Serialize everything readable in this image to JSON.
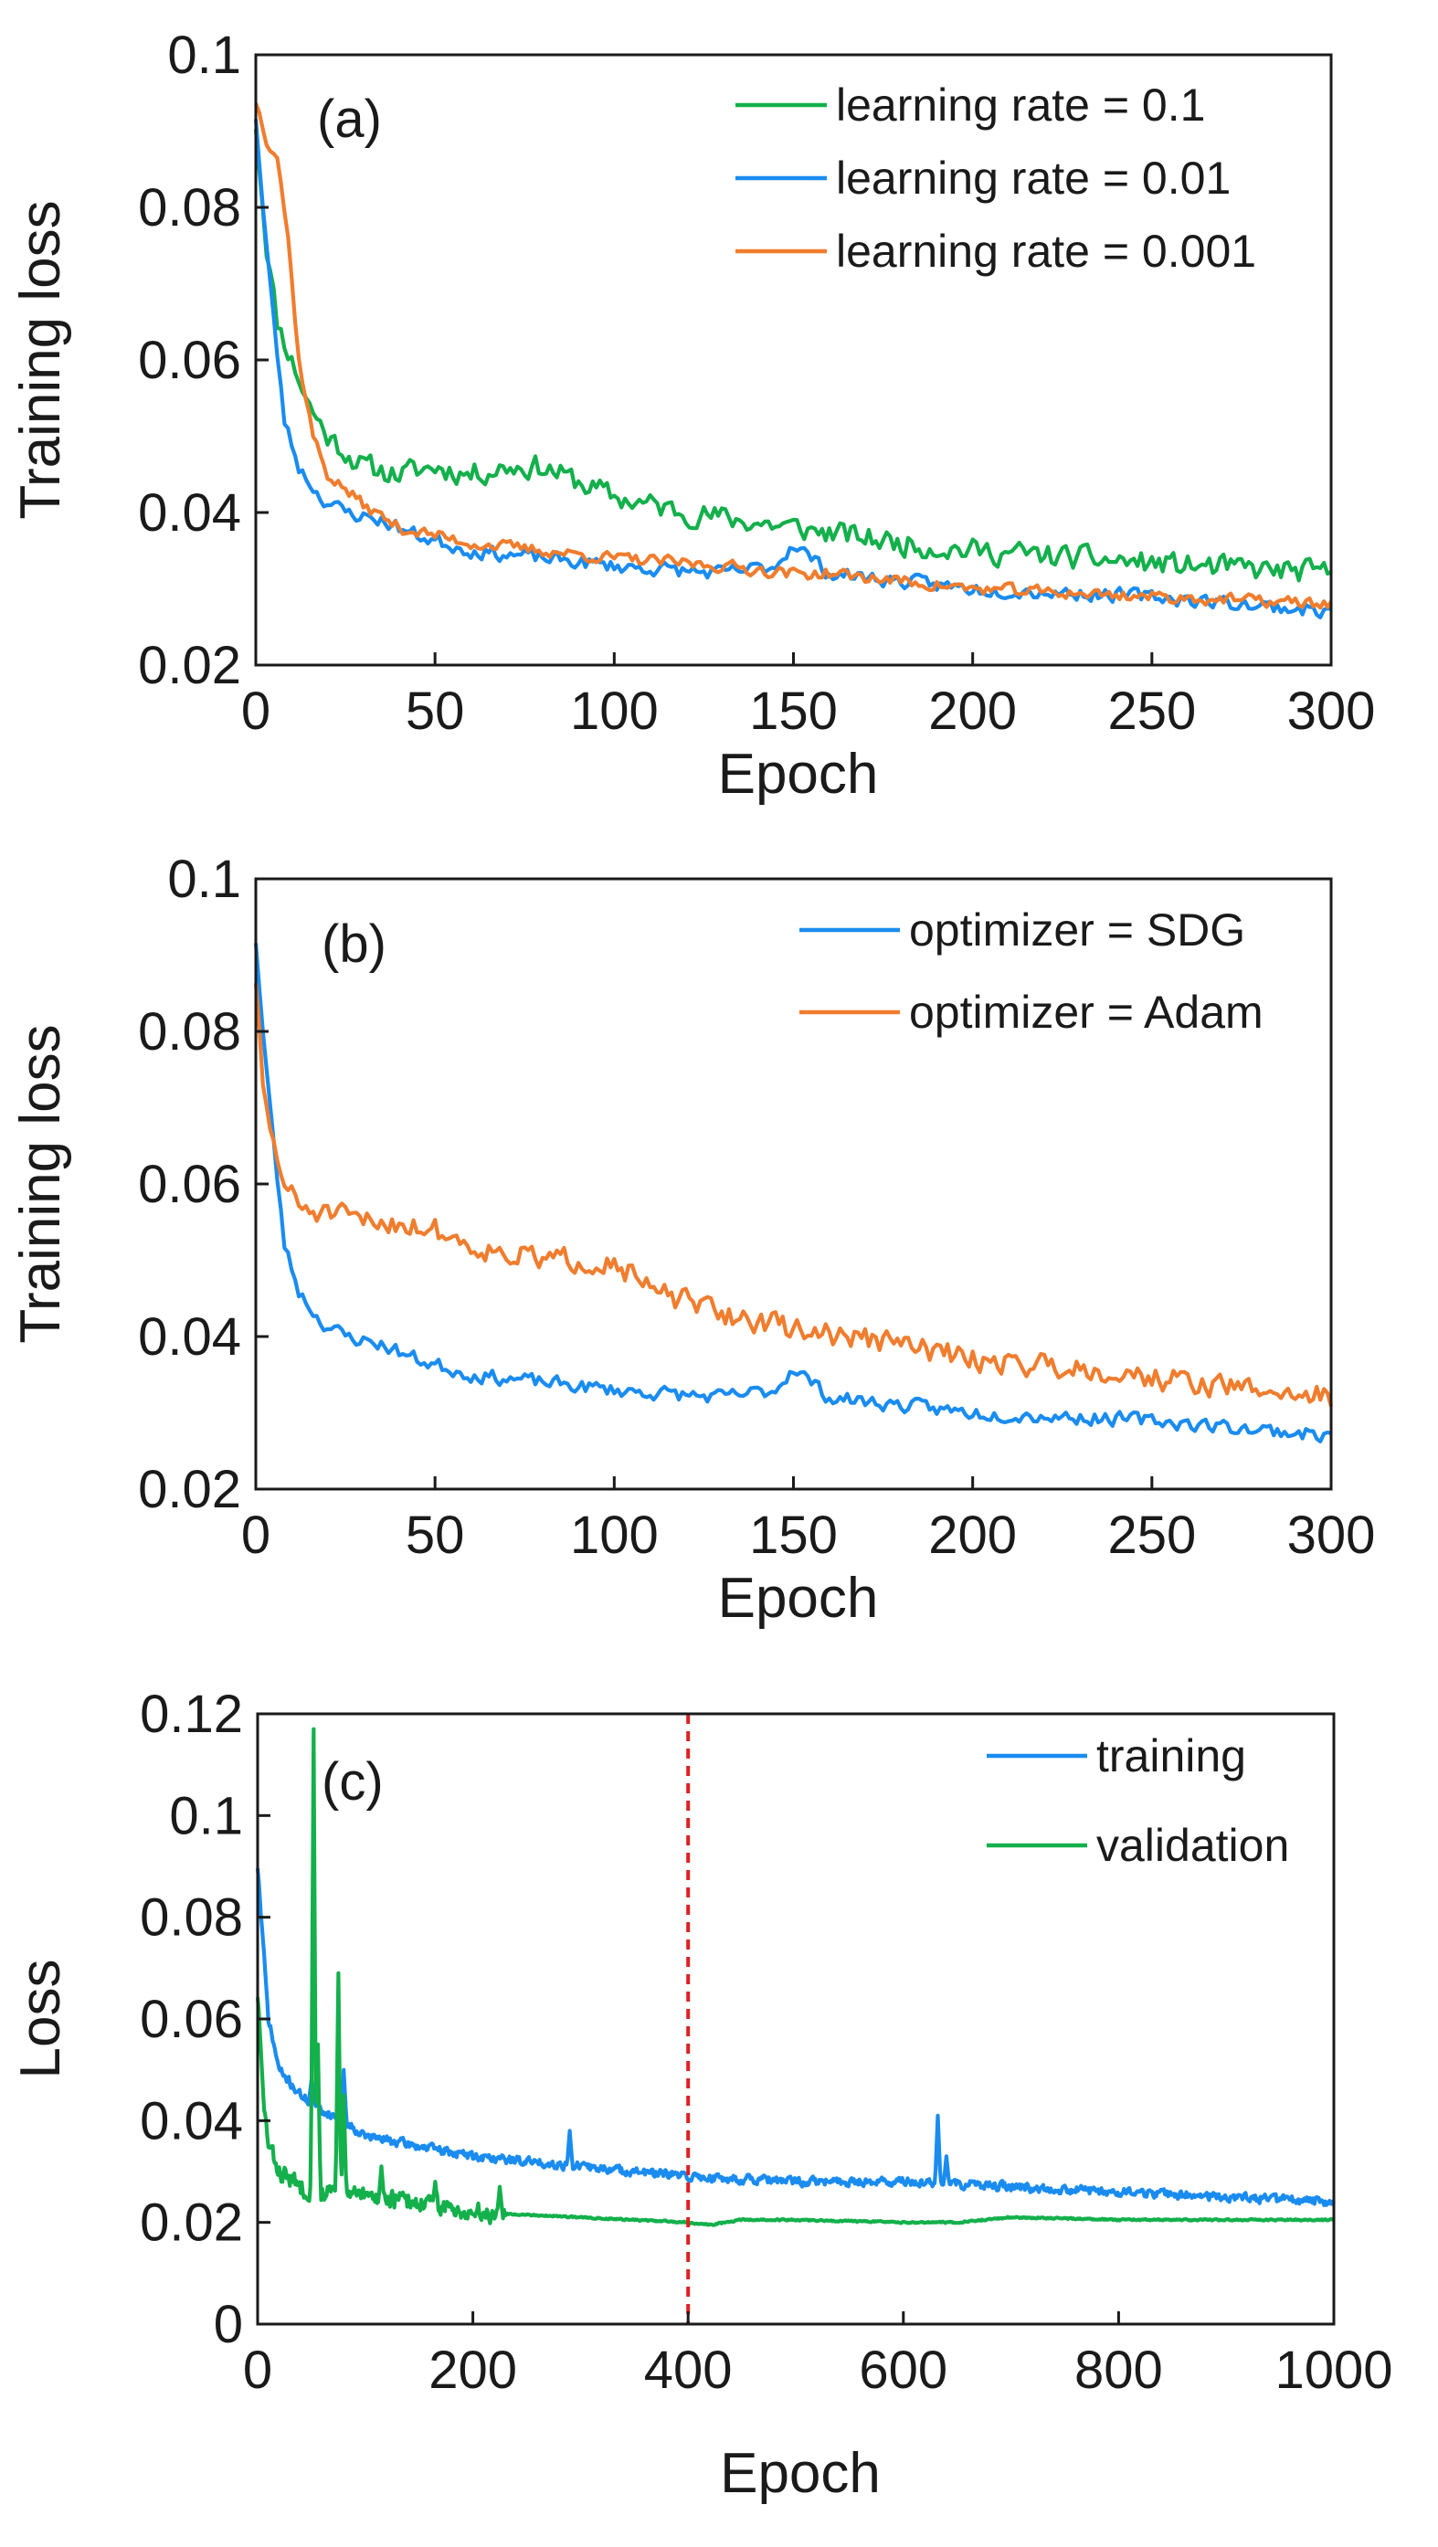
{
  "colors": {
    "green": "#13b04b",
    "blue": "#1a8cf0",
    "orange": "#f07d2e",
    "red": "#e02020",
    "axis": "#1a1a1a"
  },
  "chart_data": [
    {
      "type": "line",
      "panel_label": "(a)",
      "xlabel": "Epoch",
      "ylabel": "Training loss",
      "xlim": [
        0,
        300
      ],
      "ylim": [
        0.02,
        0.1
      ],
      "xticks": [
        0,
        50,
        100,
        150,
        200,
        250,
        300
      ],
      "xtick_labels": [
        "0",
        "50",
        "100",
        "150",
        "200",
        "250",
        "300"
      ],
      "yticks": [
        0.02,
        0.04,
        0.06,
        0.08,
        0.1
      ],
      "ytick_labels": [
        "0.02",
        "0.04",
        "0.06",
        "0.08",
        "0.1"
      ],
      "legend_position": "top-right",
      "series": [
        {
          "name": "learning rate = 0.1",
          "color": "green",
          "noise": 0.0022,
          "seed": 11,
          "x": [
            0,
            3,
            6,
            10,
            15,
            20,
            30,
            40,
            50,
            60,
            70,
            80,
            90,
            100,
            120,
            150,
            180,
            200,
            230,
            260,
            300
          ],
          "y": [
            0.091,
            0.075,
            0.065,
            0.06,
            0.054,
            0.05,
            0.046,
            0.045,
            0.046,
            0.045,
            0.046,
            0.046,
            0.044,
            0.042,
            0.04,
            0.038,
            0.036,
            0.035,
            0.034,
            0.033,
            0.032
          ]
        },
        {
          "name": "learning rate = 0.01",
          "color": "blue",
          "noise": 0.0013,
          "seed": 23,
          "x": [
            0,
            2,
            5,
            8,
            12,
            18,
            25,
            35,
            45,
            60,
            80,
            100,
            130,
            145,
            150,
            160,
            200,
            250,
            300
          ],
          "y": [
            0.092,
            0.08,
            0.065,
            0.052,
            0.046,
            0.042,
            0.04,
            0.039,
            0.037,
            0.035,
            0.034,
            0.033,
            0.032,
            0.033,
            0.036,
            0.032,
            0.03,
            0.029,
            0.027
          ]
        },
        {
          "name": "learning rate = 0.001",
          "color": "orange",
          "noise": 0.0011,
          "seed": 37,
          "x": [
            0,
            3,
            6,
            9,
            12,
            16,
            20,
            30,
            40,
            60,
            80,
            100,
            130,
            150,
            160,
            200,
            250,
            300
          ],
          "y": [
            0.094,
            0.089,
            0.087,
            0.076,
            0.06,
            0.05,
            0.045,
            0.041,
            0.038,
            0.036,
            0.035,
            0.034,
            0.033,
            0.032,
            0.032,
            0.03,
            0.029,
            0.028
          ]
        }
      ]
    },
    {
      "type": "line",
      "panel_label": "(b)",
      "xlabel": "Epoch",
      "ylabel": "Training loss",
      "xlim": [
        0,
        300
      ],
      "ylim": [
        0.02,
        0.1
      ],
      "xticks": [
        0,
        50,
        100,
        150,
        200,
        250,
        300
      ],
      "xtick_labels": [
        "0",
        "50",
        "100",
        "150",
        "200",
        "250",
        "300"
      ],
      "yticks": [
        0.02,
        0.04,
        0.06,
        0.08,
        0.1
      ],
      "ytick_labels": [
        "0.02",
        "0.04",
        "0.06",
        "0.08",
        "0.1"
      ],
      "legend_position": "top-right",
      "series": [
        {
          "name": "optimizer = SDG",
          "color": "blue",
          "noise": 0.0013,
          "seed": 23,
          "x": [
            0,
            2,
            5,
            8,
            12,
            18,
            25,
            35,
            45,
            60,
            80,
            100,
            130,
            145,
            150,
            160,
            200,
            250,
            300
          ],
          "y": [
            0.092,
            0.08,
            0.065,
            0.052,
            0.046,
            0.042,
            0.04,
            0.039,
            0.037,
            0.035,
            0.034,
            0.033,
            0.032,
            0.033,
            0.036,
            0.032,
            0.03,
            0.029,
            0.027
          ]
        },
        {
          "name": "optimizer = Adam",
          "color": "orange",
          "noise": 0.0022,
          "seed": 51,
          "x": [
            0,
            2,
            5,
            8,
            12,
            20,
            30,
            40,
            50,
            60,
            70,
            80,
            90,
            100,
            110,
            130,
            150,
            180,
            200,
            230,
            260,
            300
          ],
          "y": [
            0.087,
            0.072,
            0.065,
            0.06,
            0.057,
            0.056,
            0.055,
            0.055,
            0.054,
            0.052,
            0.051,
            0.05,
            0.05,
            0.05,
            0.046,
            0.043,
            0.041,
            0.039,
            0.037,
            0.036,
            0.034,
            0.032
          ]
        }
      ]
    },
    {
      "type": "line",
      "panel_label": "(c)",
      "xlabel": "Epoch",
      "ylabel": "Loss",
      "xlim": [
        0,
        1000
      ],
      "ylim": [
        0,
        0.12
      ],
      "xticks": [
        0,
        200,
        400,
        600,
        800,
        1000
      ],
      "xtick_labels": [
        "0",
        "200",
        "400",
        "600",
        "800",
        "1000"
      ],
      "yticks": [
        0,
        0.02,
        0.04,
        0.06,
        0.08,
        0.1,
        0.12
      ],
      "ytick_labels": [
        "0",
        "0.02",
        "0.04",
        "0.06",
        "0.08",
        "0.1",
        "0.12"
      ],
      "legend_position": "top-right",
      "vline": {
        "x": 400,
        "color": "red",
        "style": "dashed"
      },
      "series": [
        {
          "name": "training",
          "color": "blue",
          "noise": 0.0012,
          "seed": 71,
          "x": [
            0,
            5,
            10,
            20,
            40,
            60,
            80,
            100,
            150,
            200,
            300,
            400,
            500,
            600,
            700,
            800,
            900,
            1000
          ],
          "y": [
            0.09,
            0.075,
            0.06,
            0.05,
            0.045,
            0.042,
            0.04,
            0.037,
            0.035,
            0.033,
            0.031,
            0.029,
            0.028,
            0.028,
            0.027,
            0.026,
            0.025,
            0.024
          ],
          "spikes": [
            [
              50,
              0.048
            ],
            [
              80,
              0.05
            ],
            [
              290,
              0.038
            ],
            [
              632,
              0.041
            ],
            [
              640,
              0.033
            ]
          ]
        },
        {
          "name": "validation",
          "color": "green",
          "noise": 0.0025,
          "smooth_after": 230,
          "seed": 83,
          "x": [
            0,
            5,
            10,
            20,
            40,
            60,
            100,
            150,
            200,
            300,
            400,
            420,
            450,
            500,
            600,
            650,
            700,
            800,
            1000
          ],
          "y": [
            0.065,
            0.045,
            0.035,
            0.03,
            0.027,
            0.026,
            0.025,
            0.024,
            0.022,
            0.021,
            0.02,
            0.0195,
            0.0205,
            0.0205,
            0.02,
            0.02,
            0.021,
            0.0205,
            0.0205
          ],
          "spikes": [
            [
              52,
              0.117
            ],
            [
              56,
              0.055
            ],
            [
              75,
              0.069
            ],
            [
              80,
              0.045
            ],
            [
              115,
              0.031
            ],
            [
              165,
              0.028
            ],
            [
              225,
              0.027
            ]
          ]
        }
      ]
    }
  ]
}
